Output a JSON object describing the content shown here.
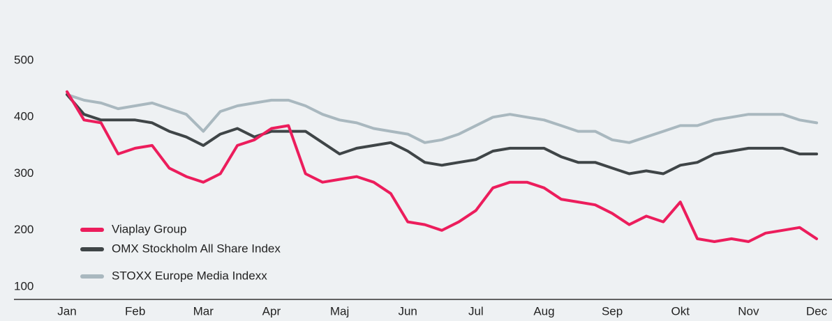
{
  "chart_data": {
    "type": "line",
    "categories": [
      "Jan",
      null,
      null,
      null,
      "Feb",
      null,
      null,
      null,
      "Mar",
      null,
      null,
      null,
      "Apr",
      null,
      null,
      null,
      "Maj",
      null,
      null,
      null,
      "Jun",
      null,
      null,
      null,
      "Jul",
      null,
      null,
      null,
      "Aug",
      null,
      null,
      null,
      "Sep",
      null,
      null,
      null,
      "Okt",
      null,
      null,
      null,
      "Nov",
      null,
      null,
      null,
      "Dec"
    ],
    "series": [
      {
        "name": "Viaplay Group",
        "color": "#ec1d5c",
        "values": [
          445,
          395,
          390,
          335,
          345,
          350,
          310,
          295,
          285,
          300,
          350,
          360,
          380,
          385,
          300,
          285,
          290,
          295,
          285,
          265,
          215,
          210,
          200,
          215,
          235,
          275,
          285,
          285,
          275,
          255,
          250,
          245,
          230,
          210,
          225,
          215,
          250,
          185,
          180,
          185,
          180,
          195,
          200,
          205,
          185
        ]
      },
      {
        "name": "OMX Stockholm All Share Index",
        "color": "#3f4547",
        "values": [
          440,
          405,
          395,
          395,
          395,
          390,
          375,
          365,
          350,
          370,
          380,
          365,
          375,
          375,
          375,
          355,
          335,
          345,
          350,
          355,
          340,
          320,
          315,
          320,
          325,
          340,
          345,
          345,
          345,
          330,
          320,
          320,
          310,
          300,
          305,
          300,
          315,
          320,
          335,
          340,
          345,
          345,
          345,
          335,
          335
        ]
      },
      {
        "name": "STOXX Europe Media Indexx",
        "color": "#a9b8bf",
        "values": [
          440,
          430,
          425,
          415,
          420,
          425,
          415,
          405,
          375,
          410,
          420,
          425,
          430,
          430,
          420,
          405,
          395,
          390,
          380,
          375,
          370,
          355,
          360,
          370,
          385,
          400,
          405,
          400,
          395,
          385,
          375,
          375,
          360,
          355,
          365,
          375,
          385,
          385,
          395,
          400,
          405,
          405,
          405,
          395,
          390
        ]
      }
    ],
    "ylim": [
      100,
      500
    ],
    "yticks": [
      100,
      200,
      300,
      400,
      500
    ],
    "grid": false,
    "legend": "lower-left"
  }
}
